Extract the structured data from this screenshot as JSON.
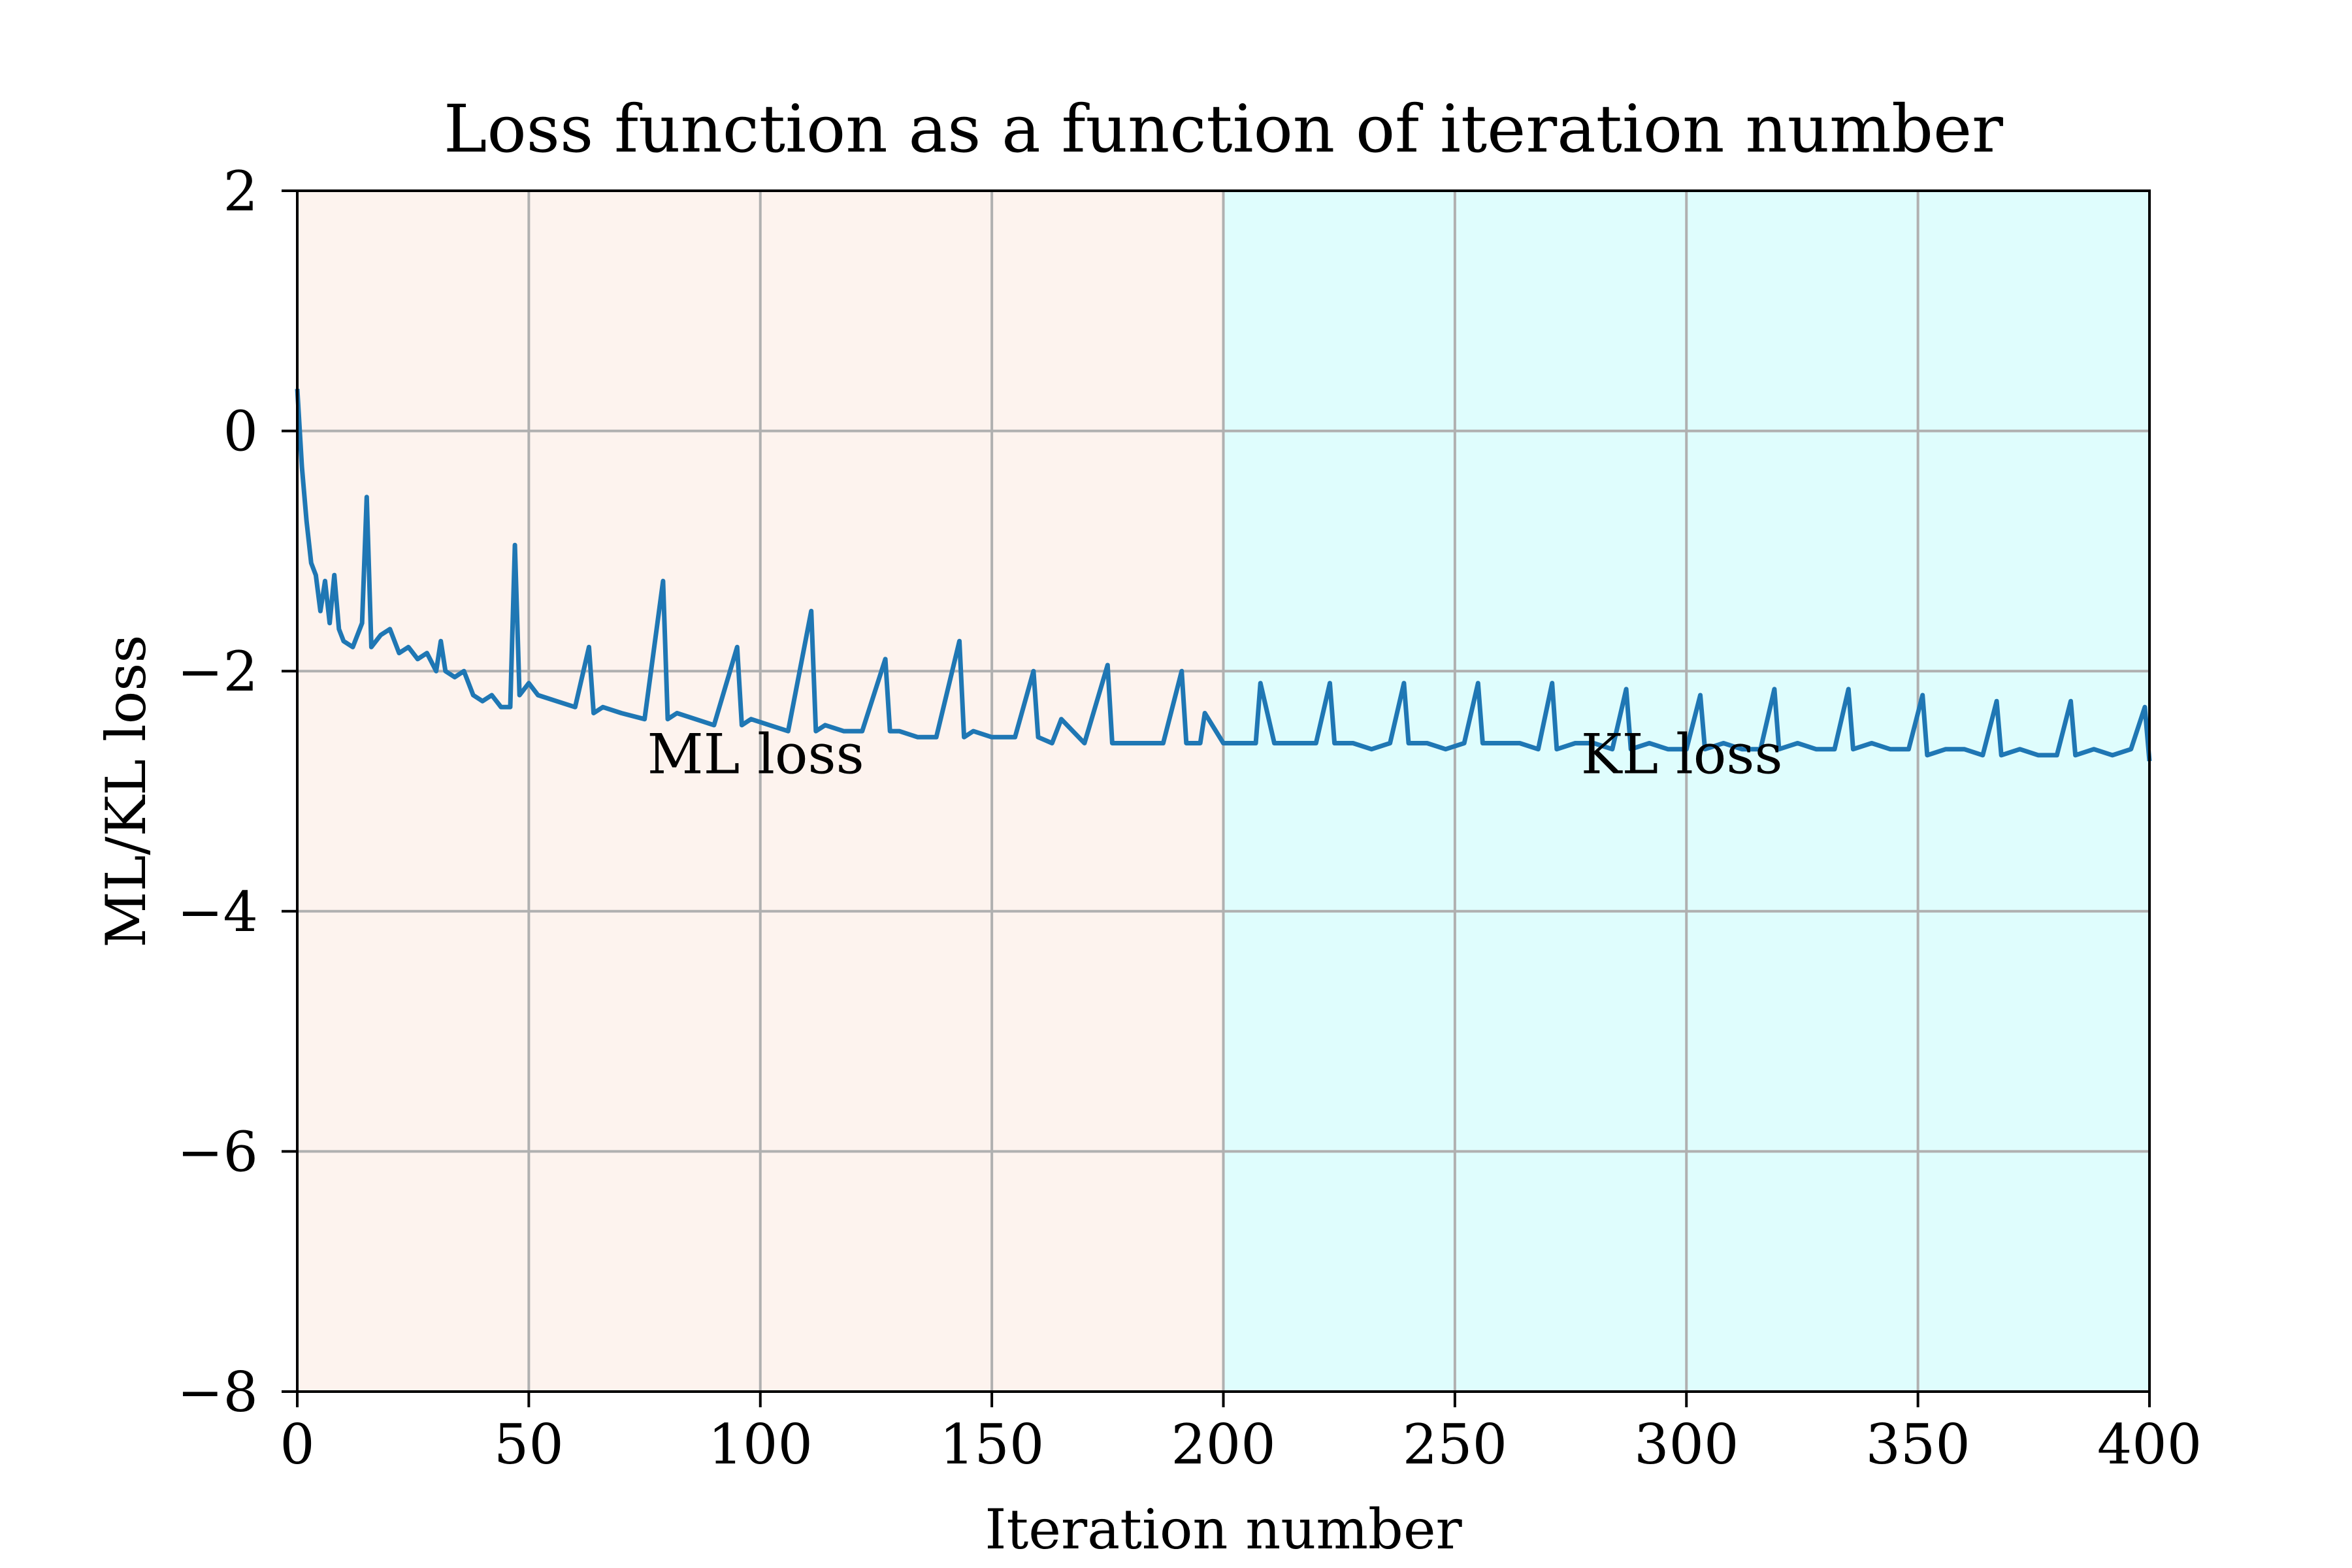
{
  "chart_data": {
    "type": "line",
    "title": "Loss function as a function of iteration number",
    "xlabel": "Iteration number",
    "ylabel": "ML/KL loss",
    "xlim": [
      0,
      400
    ],
    "ylim": [
      -8,
      2
    ],
    "xticks": [
      0,
      50,
      100,
      150,
      200,
      250,
      300,
      350,
      400
    ],
    "yticks": [
      2,
      0,
      -2,
      -4,
      -6,
      -8
    ],
    "xtick_labels": [
      "0",
      "50",
      "100",
      "150",
      "200",
      "250",
      "300",
      "350",
      "400"
    ],
    "ytick_labels": [
      "2",
      "0",
      "−2",
      "−4",
      "−6",
      "−8"
    ],
    "grid": true,
    "regions": [
      {
        "label": "ML loss",
        "x_start": 0,
        "x_end": 200,
        "color": "#fdf3ee",
        "label_x": 99,
        "label_y": -2.85
      },
      {
        "label": "KL loss",
        "x_start": 200,
        "x_end": 400,
        "color": "#dffdfd",
        "label_x": 299,
        "label_y": -2.85
      }
    ],
    "series": [
      {
        "color": "#1f77b4",
        "x": [
          0,
          1,
          2,
          3,
          4,
          5,
          6,
          7,
          8,
          9,
          10,
          12,
          14,
          15,
          16,
          18,
          20,
          22,
          24,
          26,
          28,
          30,
          31,
          32,
          34,
          36,
          38,
          40,
          42,
          44,
          46,
          47,
          48,
          50,
          52,
          56,
          60,
          63,
          64,
          66,
          70,
          75,
          79,
          80,
          82,
          86,
          90,
          95,
          96,
          98,
          102,
          106,
          111,
          112,
          114,
          118,
          122,
          127,
          128,
          130,
          134,
          138,
          143,
          144,
          146,
          150,
          155,
          159,
          160,
          163,
          165,
          170,
          175,
          176,
          178,
          182,
          187,
          191,
          192,
          195,
          196,
          200,
          203,
          207,
          208,
          211,
          212,
          216,
          220,
          223,
          224,
          228,
          232,
          236,
          239,
          240,
          244,
          248,
          252,
          255,
          256,
          260,
          264,
          268,
          271,
          272,
          276,
          280,
          284,
          287,
          288,
          292,
          296,
          300,
          303,
          304,
          308,
          312,
          316,
          319,
          320,
          324,
          328,
          332,
          335,
          336,
          340,
          344,
          348,
          351,
          352,
          356,
          360,
          364,
          367,
          368,
          372,
          376,
          380,
          383,
          384,
          388,
          392,
          396,
          399,
          400
        ],
        "y": [
          0.35,
          -0.3,
          -0.75,
          -1.1,
          -1.2,
          -1.5,
          -1.25,
          -1.6,
          -1.2,
          -1.65,
          -1.75,
          -1.8,
          -1.6,
          -0.55,
          -1.8,
          -1.7,
          -1.65,
          -1.85,
          -1.8,
          -1.9,
          -1.85,
          -2.0,
          -1.75,
          -2.0,
          -2.05,
          -2.0,
          -2.2,
          -2.25,
          -2.2,
          -2.3,
          -2.3,
          -0.95,
          -2.2,
          -2.1,
          -2.2,
          -2.25,
          -2.3,
          -1.8,
          -2.35,
          -2.3,
          -2.35,
          -2.4,
          -1.25,
          -2.4,
          -2.35,
          -2.4,
          -2.45,
          -1.8,
          -2.45,
          -2.4,
          -2.45,
          -2.5,
          -1.5,
          -2.5,
          -2.45,
          -2.5,
          -2.5,
          -1.9,
          -2.5,
          -2.5,
          -2.55,
          -2.55,
          -1.75,
          -2.55,
          -2.5,
          -2.55,
          -2.55,
          -2.0,
          -2.55,
          -2.6,
          -2.4,
          -2.6,
          -1.95,
          -2.6,
          -2.6,
          -2.6,
          -2.6,
          -2.0,
          -2.6,
          -2.6,
          -2.35,
          -2.6,
          -2.6,
          -2.6,
          -2.1,
          -2.6,
          -2.6,
          -2.6,
          -2.6,
          -2.1,
          -2.6,
          -2.6,
          -2.65,
          -2.6,
          -2.1,
          -2.6,
          -2.6,
          -2.65,
          -2.6,
          -2.1,
          -2.6,
          -2.6,
          -2.6,
          -2.65,
          -2.1,
          -2.65,
          -2.6,
          -2.6,
          -2.65,
          -2.15,
          -2.65,
          -2.6,
          -2.65,
          -2.65,
          -2.2,
          -2.65,
          -2.6,
          -2.65,
          -2.65,
          -2.15,
          -2.65,
          -2.6,
          -2.65,
          -2.65,
          -2.15,
          -2.65,
          -2.6,
          -2.65,
          -2.65,
          -2.2,
          -2.7,
          -2.65,
          -2.65,
          -2.7,
          -2.25,
          -2.7,
          -2.65,
          -2.7,
          -2.7,
          -2.25,
          -2.7,
          -2.65,
          -2.7,
          -2.65,
          -2.3,
          -2.75
        ]
      }
    ]
  }
}
